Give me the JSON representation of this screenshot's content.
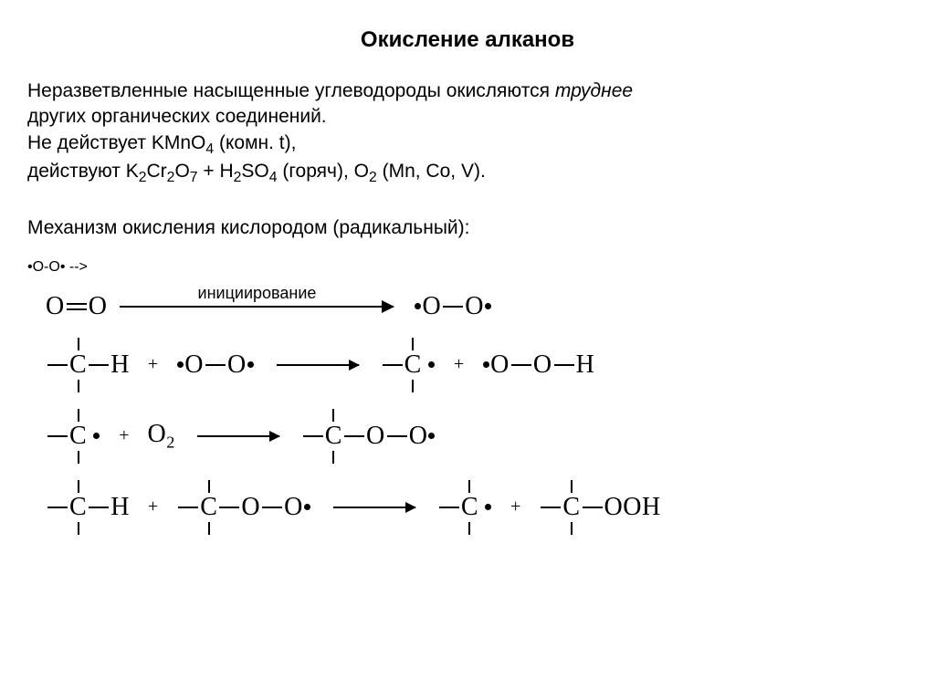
{
  "title": "Окисление алканов",
  "title_fontsize": 24,
  "para1_part1": "Неразветвленные насыщенные углеводороды окисляются ",
  "para1_italic": "труднее",
  "para1_part2": " других органических соединений.",
  "para2": "Не действует KMnO4 (комн. t),",
  "para3_prefix": "действуют K",
  "para3_cr": "Cr",
  "para3_o7": "O",
  "para3_h2so4": " + H",
  "para3_so4": "SO",
  "para3_tail": " (горяч), O",
  "para3_catalysts": " (Mn, Co, V).",
  "para4": "Механизм окисления кислородом (радикальный):",
  "body_fontsize": 21,
  "plus": "+",
  "arrow_label": "инициирование",
  "chem": {
    "O2_dbond_left": "O",
    "O2_dbond_right": "O",
    "O": "O",
    "C": "C",
    "H": "H",
    "O2_mol": "O",
    "OOH_tail": "OOH"
  },
  "arrow_label_fontsize": 18,
  "chem_fontsize": 28,
  "long_arrow_width": 300,
  "short_arrow_width": 90,
  "colors": {
    "text": "#000000",
    "background": "#ffffff"
  }
}
